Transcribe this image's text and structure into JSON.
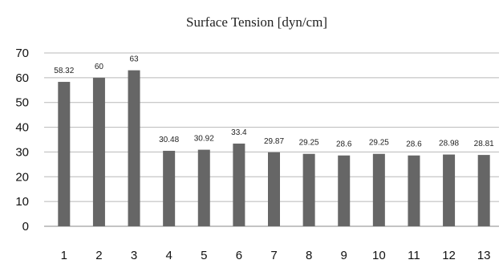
{
  "chart_data": {
    "type": "bar",
    "title": "Surface Tension [dyn/cm]",
    "xlabel": "",
    "ylabel": "",
    "ylim": [
      0,
      70
    ],
    "y_ticks": [
      0,
      10,
      20,
      30,
      40,
      50,
      60,
      70
    ],
    "grid": true,
    "legend": "none",
    "categories": [
      "1",
      "2",
      "3",
      "4",
      "5",
      "6",
      "7",
      "8",
      "9",
      "10",
      "11",
      "12",
      "13"
    ],
    "values": [
      58.32,
      60,
      63,
      30.48,
      30.92,
      33.4,
      29.87,
      29.25,
      28.6,
      29.25,
      28.6,
      28.98,
      28.81
    ],
    "data_labels": [
      "58.32",
      "60",
      "63",
      "30.48",
      "30.92",
      "33.4",
      "29.87",
      "29.25",
      "28.6",
      "29.25",
      "28.6",
      "28.98",
      "28.81"
    ],
    "bar_color": "#666666",
    "grid_color": "#b8b8b8"
  }
}
